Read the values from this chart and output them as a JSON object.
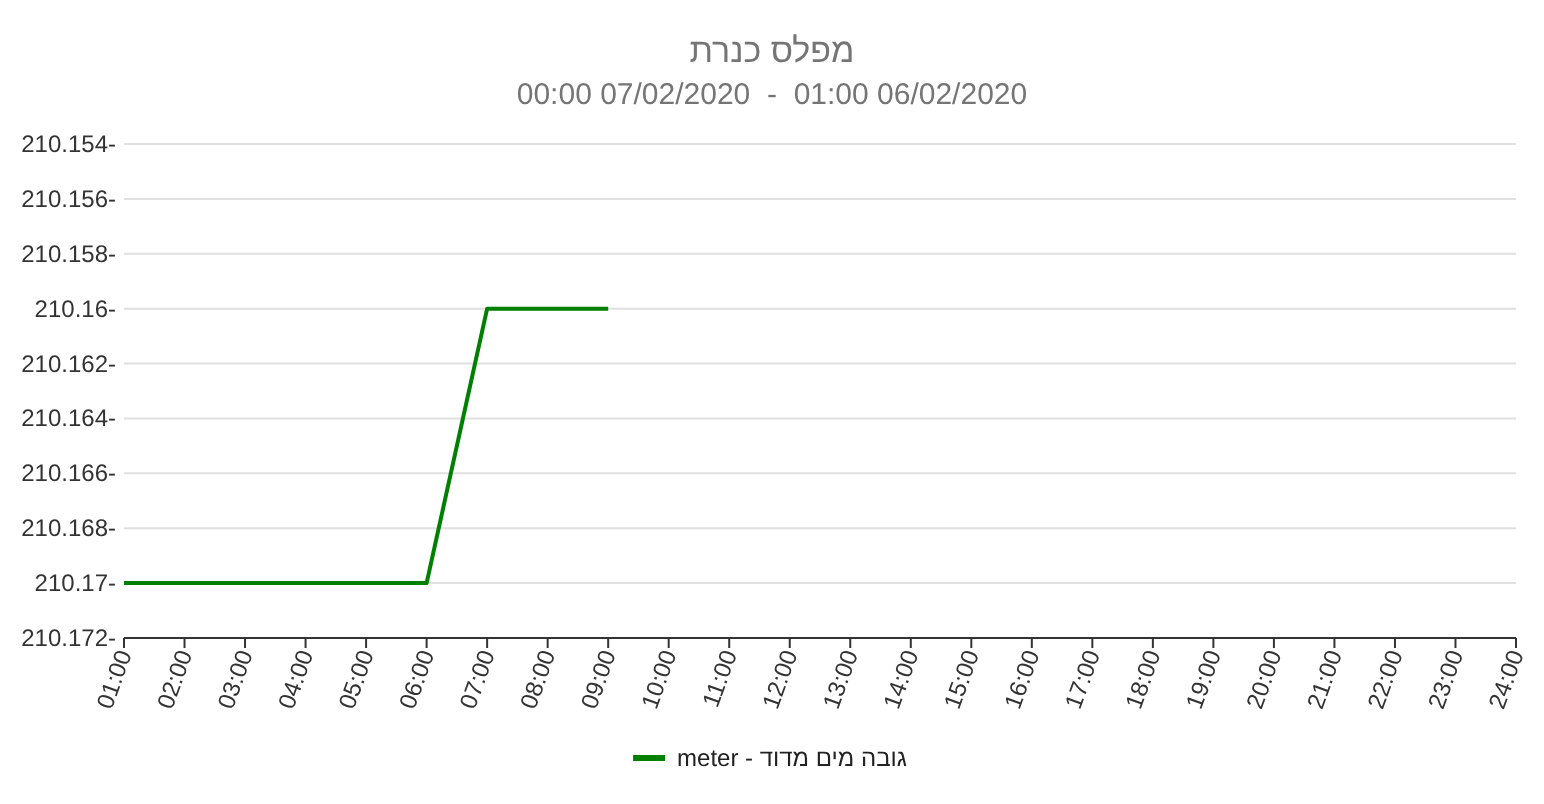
{
  "chart_data": {
    "type": "line",
    "title": "מפלס כנרת",
    "subtitle": "00:00 07/02/2020  -  01:00 06/02/2020",
    "x": [
      1,
      2,
      3,
      4,
      5,
      6,
      7,
      8,
      9
    ],
    "series": [
      {
        "name": "גובה מים מדוד - meter",
        "color": "#008000",
        "values": [
          -210.17,
          -210.17,
          -210.17,
          -210.17,
          -210.17,
          -210.17,
          -210.16,
          -210.16,
          -210.16
        ]
      }
    ],
    "xlim": [
      1,
      24
    ],
    "xticks": [
      {
        "value": 1,
        "label": "01:00"
      },
      {
        "value": 2,
        "label": "02:00"
      },
      {
        "value": 3,
        "label": "03:00"
      },
      {
        "value": 4,
        "label": "04:00"
      },
      {
        "value": 5,
        "label": "05:00"
      },
      {
        "value": 6,
        "label": "06:00"
      },
      {
        "value": 7,
        "label": "07:00"
      },
      {
        "value": 8,
        "label": "08:00"
      },
      {
        "value": 9,
        "label": "09:00"
      },
      {
        "value": 10,
        "label": "10:00"
      },
      {
        "value": 11,
        "label": "11:00"
      },
      {
        "value": 12,
        "label": "12:00"
      },
      {
        "value": 13,
        "label": "13:00"
      },
      {
        "value": 14,
        "label": "14:00"
      },
      {
        "value": 15,
        "label": "15:00"
      },
      {
        "value": 16,
        "label": "16:00"
      },
      {
        "value": 17,
        "label": "17:00"
      },
      {
        "value": 18,
        "label": "18:00"
      },
      {
        "value": 19,
        "label": "19:00"
      },
      {
        "value": 20,
        "label": "20:00"
      },
      {
        "value": 21,
        "label": "21:00"
      },
      {
        "value": 22,
        "label": "22:00"
      },
      {
        "value": 23,
        "label": "23:00"
      },
      {
        "value": 24,
        "label": "24:00"
      }
    ],
    "ylim": [
      -210.172,
      -210.154
    ],
    "yticks": [
      {
        "value": -210.154,
        "label": "210.154-"
      },
      {
        "value": -210.156,
        "label": "210.156-"
      },
      {
        "value": -210.158,
        "label": "210.158-"
      },
      {
        "value": -210.16,
        "label": "210.16-"
      },
      {
        "value": -210.162,
        "label": "210.162-"
      },
      {
        "value": -210.164,
        "label": "210.164-"
      },
      {
        "value": -210.166,
        "label": "210.166-"
      },
      {
        "value": -210.168,
        "label": "210.168-"
      },
      {
        "value": -210.17,
        "label": "210.17-"
      },
      {
        "value": -210.172,
        "label": "210.172-"
      }
    ],
    "grid": "y",
    "legend": "bottom"
  }
}
